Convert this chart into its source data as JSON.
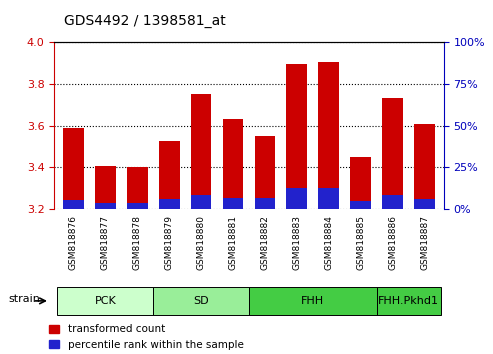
{
  "title": "GDS4492 / 1398581_at",
  "samples": [
    "GSM818876",
    "GSM818877",
    "GSM818878",
    "GSM818879",
    "GSM818880",
    "GSM818881",
    "GSM818882",
    "GSM818883",
    "GSM818884",
    "GSM818885",
    "GSM818886",
    "GSM818887"
  ],
  "red_tops": [
    3.59,
    3.405,
    3.4,
    3.525,
    3.752,
    3.632,
    3.548,
    3.895,
    3.908,
    3.448,
    3.732,
    3.608
  ],
  "blue_tops": [
    3.242,
    3.228,
    3.228,
    3.248,
    3.268,
    3.252,
    3.252,
    3.298,
    3.298,
    3.24,
    3.268,
    3.248
  ],
  "bar_bottom": 3.2,
  "ylim_left": [
    3.2,
    4.0
  ],
  "ylim_right": [
    0,
    100
  ],
  "yticks_left": [
    3.2,
    3.4,
    3.6,
    3.8,
    4.0
  ],
  "yticks_right": [
    0,
    25,
    50,
    75,
    100
  ],
  "red_color": "#cc0000",
  "blue_color": "#2222cc",
  "bar_width": 0.65,
  "group_labels": [
    "PCK",
    "SD",
    "FHH",
    "FHH.Pkhd1"
  ],
  "group_xstart": [
    -0.5,
    2.5,
    5.5,
    9.5
  ],
  "group_xend": [
    2.5,
    5.5,
    9.5,
    11.5
  ],
  "group_colors": [
    "#ccffcc",
    "#99ee99",
    "#44cc44",
    "#44cc44"
  ],
  "strain_label": "strain",
  "legend_red": "transformed count",
  "legend_blue": "percentile rank within the sample",
  "tick_color_left": "#cc0000",
  "tick_color_right": "#0000bb",
  "xtick_bg": "#cccccc",
  "axis_bg": "#ffffff"
}
